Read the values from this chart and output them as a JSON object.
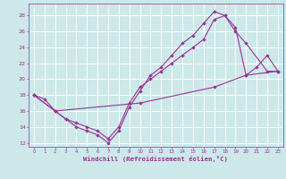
{
  "bg_color": "#cce8e8",
  "grid_color": "#ffffff",
  "line_color": "#993399",
  "xlim": [
    -0.5,
    23.5
  ],
  "ylim": [
    11.5,
    29.5
  ],
  "yticks": [
    12,
    14,
    16,
    18,
    20,
    22,
    24,
    26,
    28
  ],
  "xticks": [
    0,
    1,
    2,
    3,
    4,
    5,
    6,
    7,
    8,
    9,
    10,
    11,
    12,
    13,
    14,
    15,
    16,
    17,
    18,
    19,
    20,
    21,
    22,
    23
  ],
  "xlabel": "Windchill (Refroidissement éolien,°C)",
  "line1_x": [
    0,
    1,
    2,
    3,
    4,
    5,
    6,
    7,
    8,
    9,
    10,
    11,
    12,
    13,
    14,
    15,
    16,
    17,
    18,
    19,
    20,
    21,
    22,
    23
  ],
  "line1_y": [
    18,
    17.5,
    16,
    15,
    14,
    13.5,
    13,
    12,
    13.5,
    16.5,
    18.5,
    20.5,
    21.5,
    23,
    24.5,
    25.5,
    27,
    28.5,
    28,
    26.5,
    20.5,
    21.5,
    23,
    21
  ],
  "line2_x": [
    0,
    2,
    3,
    4,
    5,
    6,
    7,
    8,
    9,
    10,
    11,
    12,
    13,
    14,
    15,
    16,
    17,
    18,
    19,
    20,
    22,
    23
  ],
  "line2_y": [
    18,
    16,
    15,
    14.5,
    14,
    13.5,
    12.5,
    14,
    17,
    19,
    20,
    21,
    22,
    23,
    24,
    25,
    27.5,
    28,
    26,
    24.5,
    21,
    21
  ],
  "line3_x": [
    0,
    2,
    10,
    17,
    20,
    23
  ],
  "line3_y": [
    18,
    16,
    17,
    19,
    20.5,
    21
  ]
}
